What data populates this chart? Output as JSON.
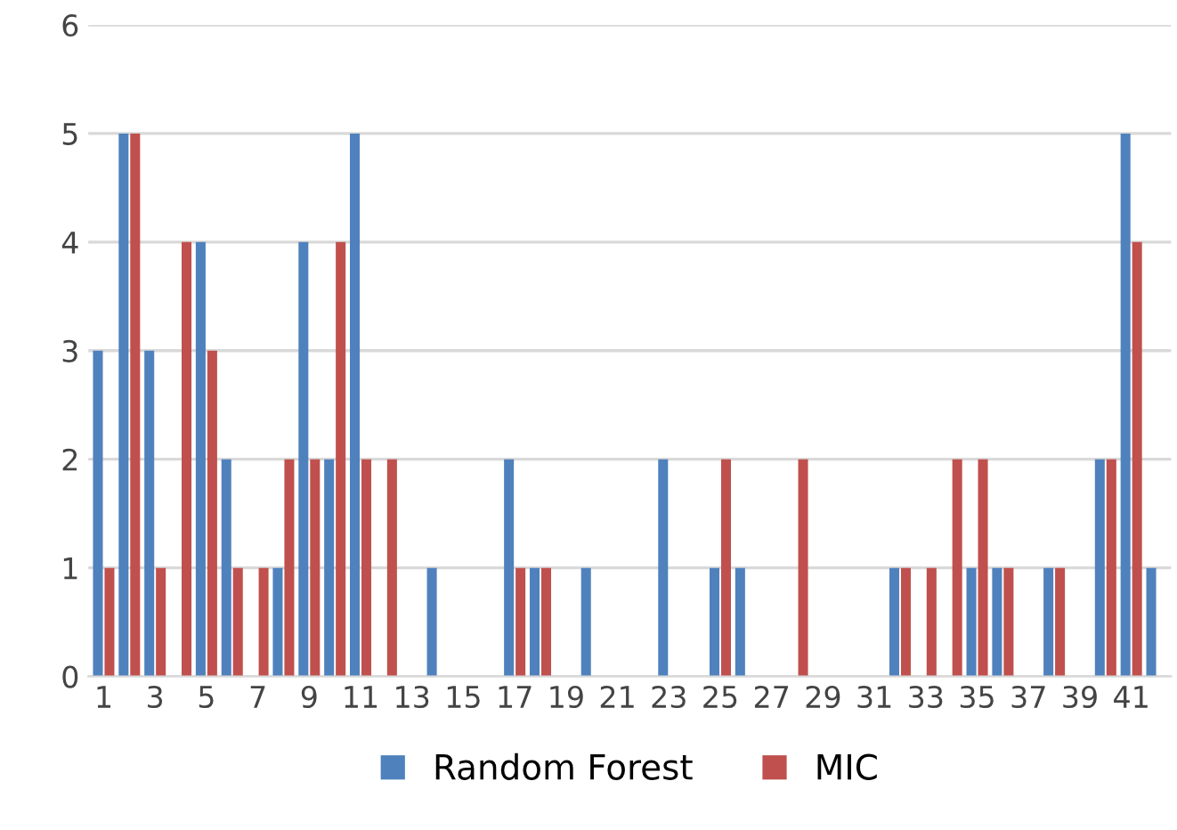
{
  "chart_data": {
    "type": "bar",
    "categories": [
      "1",
      null,
      "3",
      null,
      "5",
      null,
      "7",
      null,
      "9",
      null,
      "11",
      null,
      "13",
      null,
      "15",
      null,
      "17",
      null,
      "19",
      null,
      "21",
      null,
      "23",
      null,
      "25",
      null,
      "27",
      null,
      "29",
      null,
      "31",
      null,
      "33",
      null,
      "35",
      null,
      "37",
      null,
      "39",
      null,
      "41",
      null
    ],
    "series": [
      {
        "name": "Random Forest",
        "color": "#4f81bd",
        "values": [
          3,
          5,
          3,
          0,
          4,
          2,
          0,
          1,
          4,
          2,
          5,
          0,
          0,
          1,
          0,
          0,
          2,
          1,
          0,
          1,
          0,
          0,
          2,
          0,
          1,
          1,
          0,
          0,
          0,
          0,
          0,
          1,
          0,
          0,
          1,
          1,
          0,
          1,
          0,
          2,
          5,
          1
        ]
      },
      {
        "name": "MIC",
        "color": "#c0504d",
        "values": [
          1,
          5,
          1,
          4,
          3,
          1,
          1,
          2,
          2,
          4,
          2,
          2,
          0,
          0,
          0,
          0,
          1,
          1,
          0,
          0,
          0,
          0,
          0,
          0,
          2,
          0,
          0,
          2,
          0,
          0,
          0,
          1,
          1,
          2,
          2,
          1,
          0,
          1,
          0,
          2,
          4,
          0
        ]
      }
    ],
    "ylim": [
      0,
      6
    ],
    "yticks": [
      0,
      1,
      2,
      3,
      4,
      5,
      6
    ],
    "grid": "y",
    "legend": "bottom"
  }
}
